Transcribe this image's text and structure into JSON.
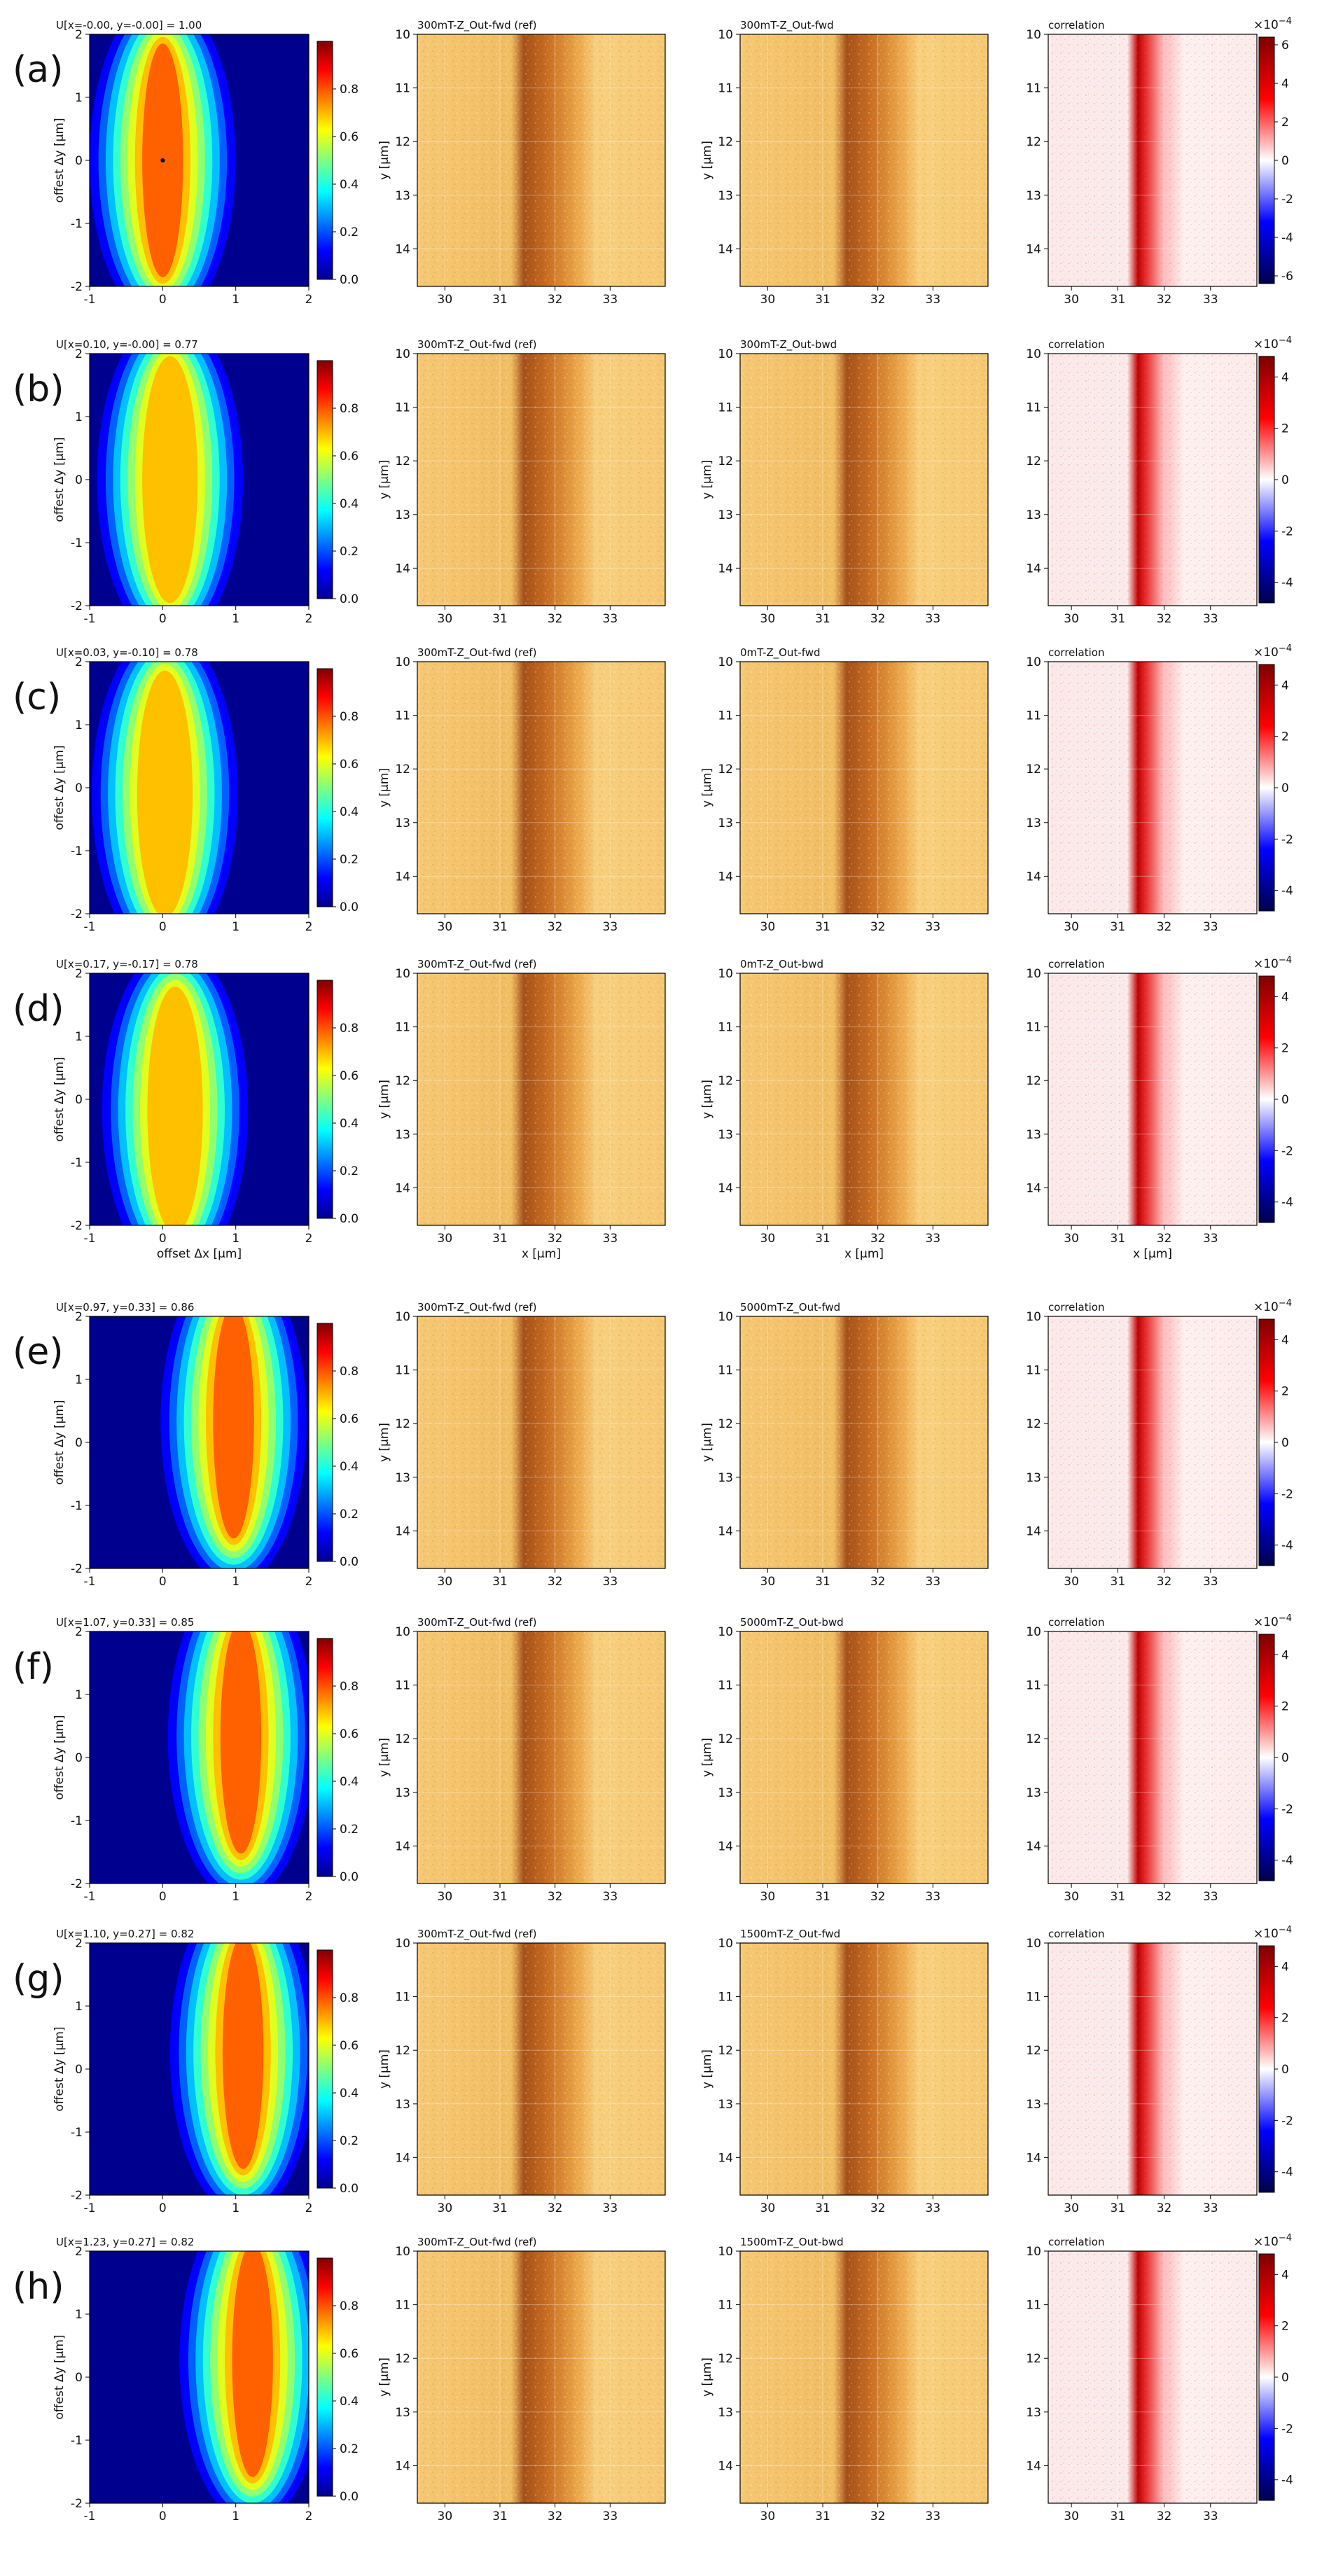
{
  "figure": {
    "tick_labels": {
      "map_x": [
        "-1",
        "0",
        "1",
        "2"
      ],
      "map_y": [
        "2",
        "1",
        "0",
        "-1",
        "-2"
      ],
      "map_cbar": [
        "0.8",
        "0.6",
        "0.4",
        "0.2",
        "0.0"
      ],
      "img_x": [
        "30",
        "31",
        "32",
        "33"
      ],
      "img_y": [
        "10",
        "11",
        "12",
        "13",
        "14"
      ]
    },
    "axis_labels": {
      "map_y": "offest Δy [µm]",
      "map_x": "offset Δx [µm]",
      "img_y": "y [µm]",
      "img_x": "x [µm]"
    },
    "cbar_exponent_base": "×10",
    "cbar_exponent_power": "−4",
    "corr_title": "correlation"
  },
  "chart_data": {
    "type": "heatmap",
    "description_free": true,
    "map_x_range": [
      -1,
      2
    ],
    "map_y_range": [
      -2,
      2
    ],
    "image_x_range": [
      29.5,
      34
    ],
    "image_y_range": [
      10,
      14.7
    ],
    "panels": [
      {
        "label": "(a)",
        "map_title": "U[x=-0.00, y=-0.00] = 1.00",
        "peak_x": 0.0,
        "peak_y": 0.0,
        "peak_value": 1.0,
        "ref_title": "300mT-Z_Out-fwd (ref)",
        "cmp_title": "300mT-Z_Out-fwd",
        "corr_ticks": [
          "6",
          "4",
          "2",
          "0",
          "-2",
          "-4",
          "-6"
        ],
        "show_x_label": false
      },
      {
        "label": "(b)",
        "map_title": "U[x=0.10, y=-0.00] = 0.77",
        "peak_x": 0.1,
        "peak_y": 0.0,
        "peak_value": 0.77,
        "ref_title": "300mT-Z_Out-fwd (ref)",
        "cmp_title": "300mT-Z_Out-bwd",
        "corr_ticks": [
          "4",
          "2",
          "0",
          "-2",
          "-4"
        ],
        "show_x_label": false
      },
      {
        "label": "(c)",
        "map_title": "U[x=0.03, y=-0.10] = 0.78",
        "peak_x": 0.03,
        "peak_y": -0.1,
        "peak_value": 0.78,
        "ref_title": "300mT-Z_Out-fwd (ref)",
        "cmp_title": "0mT-Z_Out-fwd",
        "corr_ticks": [
          "4",
          "2",
          "0",
          "-2",
          "-4"
        ],
        "show_x_label": false
      },
      {
        "label": "(d)",
        "map_title": "U[x=0.17, y=-0.17] = 0.78",
        "peak_x": 0.17,
        "peak_y": -0.17,
        "peak_value": 0.78,
        "ref_title": "300mT-Z_Out-fwd (ref)",
        "cmp_title": "0mT-Z_Out-bwd",
        "corr_ticks": [
          "4",
          "2",
          "0",
          "-2",
          "-4"
        ],
        "show_x_label": true
      },
      {
        "label": "(e)",
        "map_title": "U[x=0.97, y=0.33] = 0.86",
        "peak_x": 0.97,
        "peak_y": 0.33,
        "peak_value": 0.86,
        "ref_title": "300mT-Z_Out-fwd (ref)",
        "cmp_title": "5000mT-Z_Out-fwd",
        "corr_ticks": [
          "4",
          "2",
          "0",
          "-2",
          "-4"
        ],
        "show_x_label": false
      },
      {
        "label": "(f)",
        "map_title": "U[x=1.07, y=0.33] = 0.85",
        "peak_x": 1.07,
        "peak_y": 0.33,
        "peak_value": 0.85,
        "ref_title": "300mT-Z_Out-fwd (ref)",
        "cmp_title": "5000mT-Z_Out-bwd",
        "corr_ticks": [
          "4",
          "2",
          "0",
          "-2",
          "-4"
        ],
        "show_x_label": false
      },
      {
        "label": "(g)",
        "map_title": "U[x=1.10, y=0.27] = 0.82",
        "peak_x": 1.1,
        "peak_y": 0.27,
        "peak_value": 0.82,
        "ref_title": "300mT-Z_Out-fwd (ref)",
        "cmp_title": "1500mT-Z_Out-fwd",
        "corr_ticks": [
          "4",
          "2",
          "0",
          "-2",
          "-4"
        ],
        "show_x_label": false
      },
      {
        "label": "(h)",
        "map_title": "U[x=1.23, y=0.27] = 0.82",
        "peak_x": 1.23,
        "peak_y": 0.27,
        "peak_value": 0.82,
        "ref_title": "300mT-Z_Out-fwd (ref)",
        "cmp_title": "1500mT-Z_Out-bwd",
        "corr_ticks": [
          "4",
          "2",
          "0",
          "-2",
          "-4"
        ],
        "show_x_label": false
      }
    ]
  }
}
